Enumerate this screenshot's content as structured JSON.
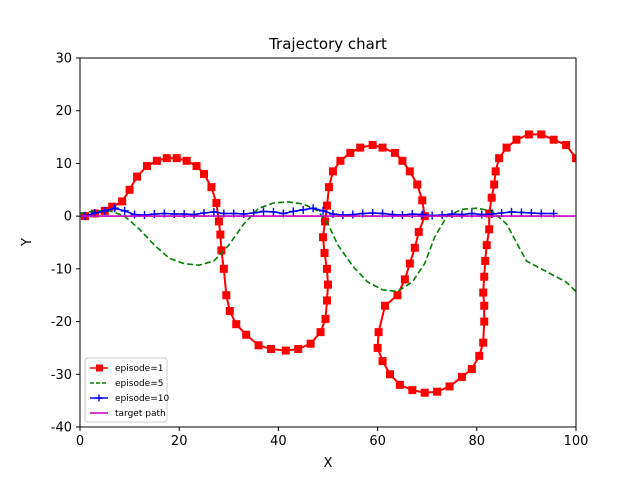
{
  "chart_data": {
    "type": "line",
    "title": "Trajectory chart",
    "xlabel": "X",
    "ylabel": "Y",
    "xlim": [
      0,
      100
    ],
    "ylim": [
      -40,
      30
    ],
    "xticks": [
      0,
      20,
      40,
      60,
      80,
      100
    ],
    "yticks": [
      -40,
      -30,
      -20,
      -10,
      0,
      10,
      20,
      30
    ],
    "grid": false,
    "legend_position": "lower-left",
    "series": [
      {
        "name": "episode=1",
        "color": "#ff0000",
        "style": "solid",
        "marker": "square",
        "points": [
          [
            1,
            0
          ],
          [
            3,
            0.5
          ],
          [
            5,
            1
          ],
          [
            6.5,
            1.8
          ],
          [
            8.5,
            2.8
          ],
          [
            10,
            5
          ],
          [
            11.5,
            7.5
          ],
          [
            13.5,
            9.5
          ],
          [
            15.5,
            10.5
          ],
          [
            17.5,
            11
          ],
          [
            19.5,
            11
          ],
          [
            21.5,
            10.5
          ],
          [
            23.5,
            9.5
          ],
          [
            25,
            8
          ],
          [
            26.5,
            5.5
          ],
          [
            27.5,
            2.5
          ],
          [
            28,
            -1
          ],
          [
            28.3,
            -3.5
          ],
          [
            28.5,
            -6.5
          ],
          [
            29,
            -10
          ],
          [
            29.5,
            -15
          ],
          [
            30.2,
            -18
          ],
          [
            31.5,
            -20.5
          ],
          [
            33.5,
            -22.5
          ],
          [
            36,
            -24.5
          ],
          [
            38.5,
            -25.2
          ],
          [
            41.5,
            -25.5
          ],
          [
            44,
            -25.2
          ],
          [
            46.5,
            -24.2
          ],
          [
            48.5,
            -22
          ],
          [
            49.5,
            -19.5
          ],
          [
            49.8,
            -16
          ],
          [
            50,
            -13
          ],
          [
            49.8,
            -10
          ],
          [
            49.3,
            -7
          ],
          [
            49,
            -4
          ],
          [
            49.4,
            -1
          ],
          [
            49.8,
            2
          ],
          [
            50.2,
            5.5
          ],
          [
            51,
            8.5
          ],
          [
            52.5,
            10.5
          ],
          [
            54.5,
            12
          ],
          [
            56.5,
            13
          ],
          [
            59,
            13.5
          ],
          [
            61,
            13
          ],
          [
            63.5,
            12
          ],
          [
            65,
            10.5
          ],
          [
            66.5,
            8.5
          ],
          [
            68,
            6
          ],
          [
            69,
            3
          ],
          [
            69.5,
            0
          ],
          [
            68.3,
            -3
          ],
          [
            67.5,
            -6
          ],
          [
            66.5,
            -9
          ],
          [
            65.5,
            -12
          ],
          [
            64,
            -15
          ],
          [
            61.5,
            -17
          ],
          [
            60.2,
            -22
          ],
          [
            60,
            -25
          ],
          [
            61,
            -27.5
          ],
          [
            62.5,
            -30
          ],
          [
            64.5,
            -32
          ],
          [
            67,
            -33
          ],
          [
            69.5,
            -33.5
          ],
          [
            72,
            -33.3
          ],
          [
            74.5,
            -32.3
          ],
          [
            77,
            -30.5
          ],
          [
            79,
            -29
          ],
          [
            80.5,
            -26.5
          ],
          [
            81.3,
            -24
          ],
          [
            81.5,
            -20
          ],
          [
            81.5,
            -17
          ],
          [
            81.3,
            -14.5
          ],
          [
            81.5,
            -11.5
          ],
          [
            81.7,
            -8.5
          ],
          [
            82,
            -5.5
          ],
          [
            82.5,
            -2.5
          ],
          [
            82.5,
            0.5
          ],
          [
            83,
            3.5
          ],
          [
            83.5,
            6
          ],
          [
            83.8,
            8.5
          ],
          [
            84.5,
            11
          ],
          [
            86,
            13
          ],
          [
            88,
            14.5
          ],
          [
            90.5,
            15.5
          ],
          [
            93,
            15.5
          ],
          [
            95.5,
            14.5
          ],
          [
            98,
            13.5
          ],
          [
            100,
            11
          ]
        ]
      },
      {
        "name": "episode=5",
        "color": "#008000",
        "style": "dashed",
        "marker": "none",
        "points": [
          [
            0,
            0.5
          ],
          [
            3,
            1
          ],
          [
            6,
            1
          ],
          [
            9,
            0
          ],
          [
            12,
            -2.5
          ],
          [
            15,
            -5.5
          ],
          [
            18,
            -8
          ],
          [
            21,
            -9
          ],
          [
            24,
            -9.3
          ],
          [
            27,
            -8.5
          ],
          [
            30,
            -5.5
          ],
          [
            33,
            -1.5
          ],
          [
            36,
            1.5
          ],
          [
            39,
            2.5
          ],
          [
            42,
            2.7
          ],
          [
            45,
            2.3
          ],
          [
            48,
            1
          ],
          [
            50,
            -1.5
          ],
          [
            52,
            -5.5
          ],
          [
            55,
            -9.5
          ],
          [
            58,
            -12.5
          ],
          [
            61,
            -14
          ],
          [
            64,
            -14.3
          ],
          [
            67,
            -12.5
          ],
          [
            69.5,
            -9
          ],
          [
            71.5,
            -4
          ],
          [
            74,
            0
          ],
          [
            77,
            1.3
          ],
          [
            80,
            1.5
          ],
          [
            83,
            1
          ],
          [
            86,
            -1.5
          ],
          [
            88,
            -5
          ],
          [
            90,
            -8.5
          ],
          [
            93,
            -10
          ],
          [
            96,
            -11.5
          ],
          [
            98,
            -12.5
          ],
          [
            100,
            -14.3
          ]
        ]
      },
      {
        "name": "episode=10",
        "color": "#0000ff",
        "style": "solid",
        "marker": "plus",
        "points": [
          [
            1,
            0
          ],
          [
            3,
            0.6
          ],
          [
            5,
            1
          ],
          [
            7,
            1.5
          ],
          [
            9,
            1
          ],
          [
            11,
            0.3
          ],
          [
            13,
            0.2
          ],
          [
            15,
            0.4
          ],
          [
            17,
            0.5
          ],
          [
            19,
            0.4
          ],
          [
            21,
            0.4
          ],
          [
            23,
            0.3
          ],
          [
            25,
            0.6
          ],
          [
            27,
            0.8
          ],
          [
            29,
            0.5
          ],
          [
            31,
            0.5
          ],
          [
            33,
            0.4
          ],
          [
            35,
            0.6
          ],
          [
            37,
            0.9
          ],
          [
            39,
            0.8
          ],
          [
            41,
            0.5
          ],
          [
            43,
            0.9
          ],
          [
            45,
            1.2
          ],
          [
            47,
            1.5
          ],
          [
            49,
            1
          ],
          [
            51,
            0.4
          ],
          [
            53,
            0.2
          ],
          [
            55,
            0.3
          ],
          [
            57,
            0.5
          ],
          [
            59,
            0.6
          ],
          [
            61,
            0.5
          ],
          [
            63,
            0.3
          ],
          [
            65,
            0.2
          ],
          [
            67,
            0.4
          ],
          [
            69,
            0.3
          ],
          [
            71,
            0.1
          ],
          [
            73,
            0.2
          ],
          [
            75,
            0.4
          ],
          [
            77,
            0.3
          ],
          [
            79,
            0.5
          ],
          [
            81,
            0.3
          ],
          [
            83,
            0.4
          ],
          [
            85,
            0.6
          ],
          [
            87,
            0.8
          ],
          [
            89,
            0.7
          ],
          [
            91,
            0.6
          ],
          [
            93,
            0.5
          ],
          [
            95.5,
            0.5
          ]
        ]
      },
      {
        "name": "target path",
        "color": "#c000c0",
        "style": "solid",
        "marker": "none",
        "points": [
          [
            0,
            0
          ],
          [
            100,
            0
          ]
        ]
      }
    ]
  }
}
